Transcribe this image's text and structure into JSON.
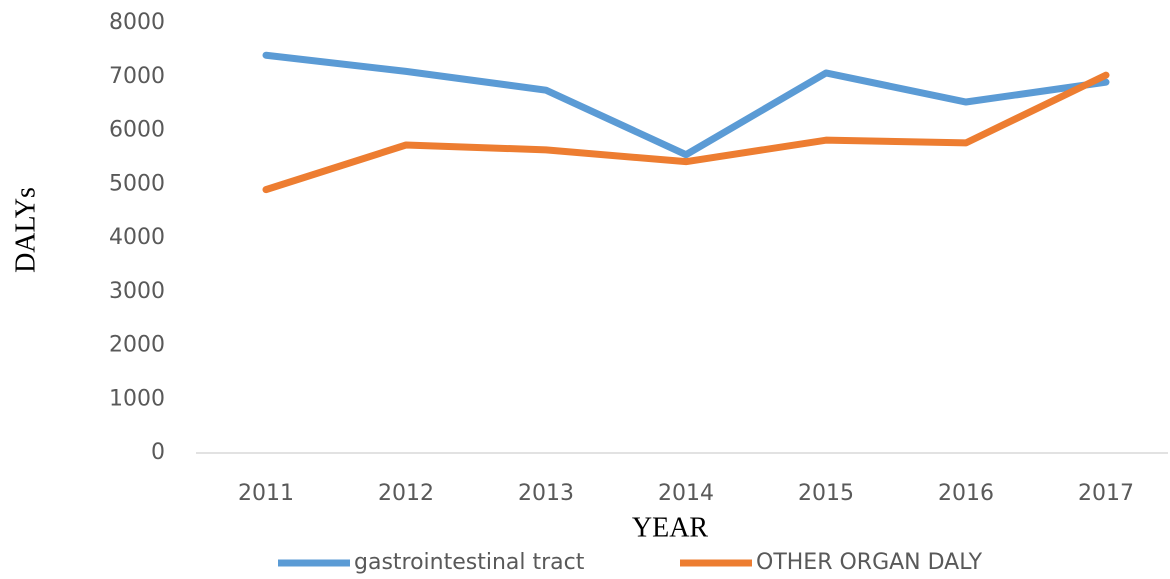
{
  "chart_data": {
    "type": "line",
    "x_label": "YEAR",
    "y_label": "DALYs",
    "categories": [
      "2011",
      "2012",
      "2013",
      "2014",
      "2015",
      "2016",
      "2017"
    ],
    "series": [
      {
        "name": "gastrointestinal tract",
        "color": "#5b9bd5",
        "values": [
          7400,
          7100,
          6750,
          5550,
          7070,
          6530,
          6900
        ]
      },
      {
        "name": "OTHER ORGAN DALY",
        "color": "#ed7d31",
        "values": [
          4900,
          5730,
          5640,
          5420,
          5820,
          5770,
          7030
        ]
      }
    ],
    "ylim": [
      0,
      8000
    ],
    "yticks": [
      0,
      1000,
      2000,
      3000,
      4000,
      5000,
      6000,
      7000,
      8000
    ],
    "grid": false,
    "legend": "bottom"
  }
}
